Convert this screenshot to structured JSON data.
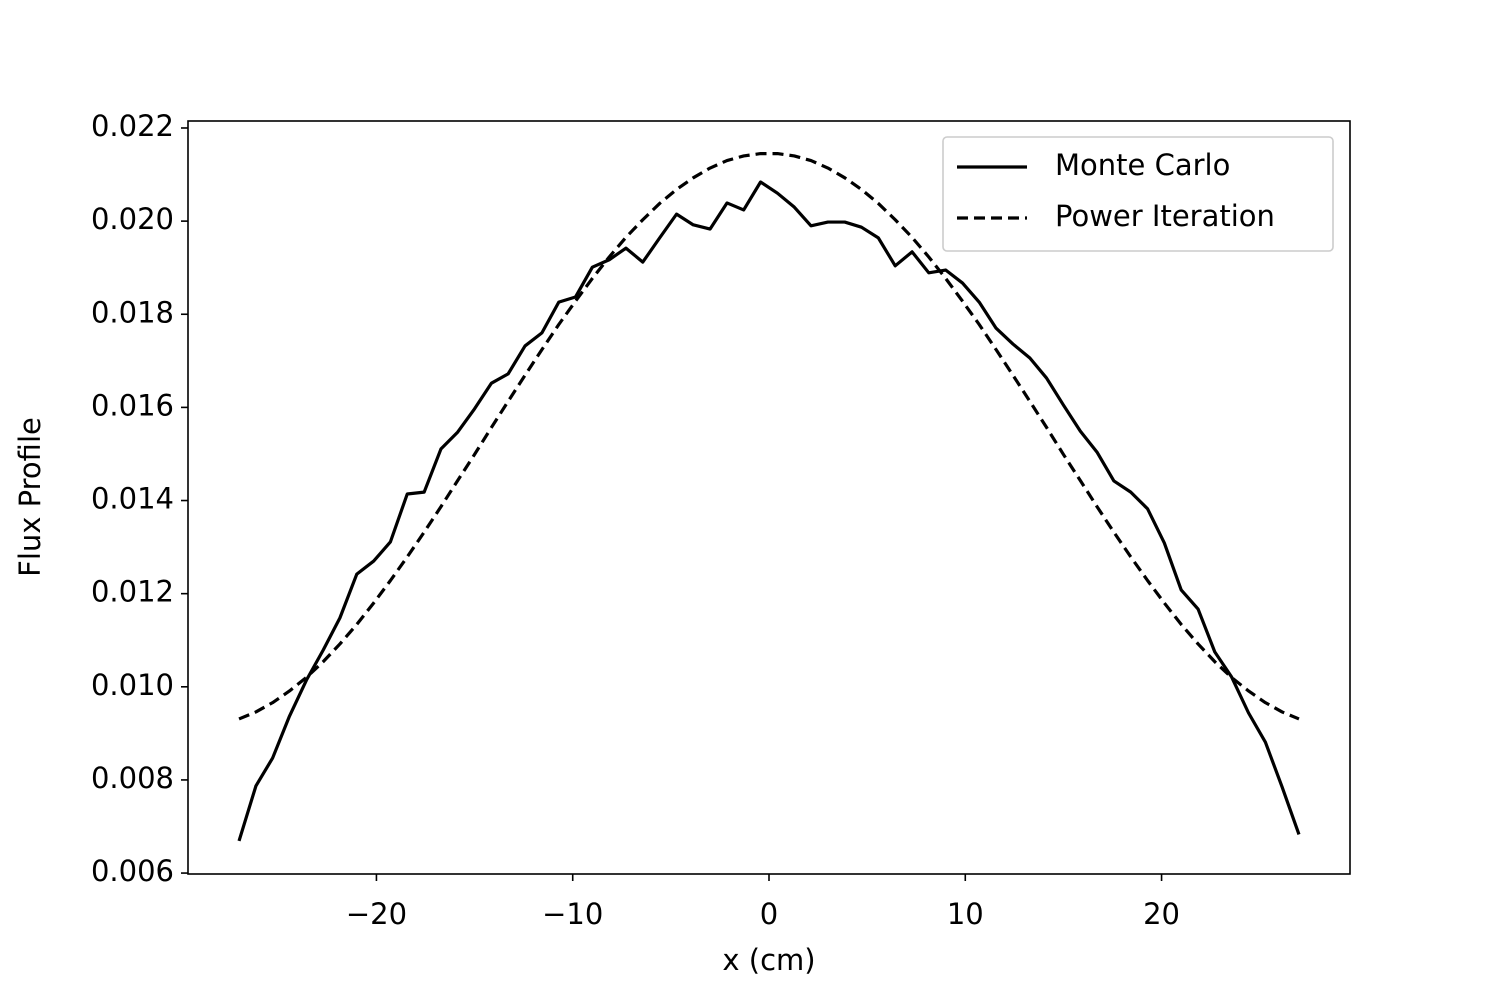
{
  "chart_data": {
    "type": "line",
    "xlabel": "x (cm)",
    "ylabel": "Flux Profile",
    "x": [
      -27,
      -26.14,
      -25.29,
      -24.43,
      -23.57,
      -22.71,
      -21.86,
      -21,
      -20.14,
      -19.29,
      -18.43,
      -17.57,
      -16.71,
      -15.86,
      -15,
      -14.14,
      -13.29,
      -12.43,
      -11.57,
      -10.71,
      -9.86,
      -9,
      -8.14,
      -7.29,
      -6.43,
      -5.57,
      -4.71,
      -3.86,
      -3,
      -2.14,
      -1.29,
      -0.43,
      0.43,
      1.29,
      2.14,
      3,
      3.86,
      4.71,
      5.57,
      6.43,
      7.29,
      8.14,
      9,
      9.86,
      10.71,
      11.57,
      12.43,
      13.29,
      14.14,
      15,
      15.86,
      16.71,
      17.57,
      18.43,
      19.29,
      20.14,
      21,
      21.86,
      22.71,
      23.57,
      24.43,
      25.29,
      26.14,
      27
    ],
    "series": [
      {
        "name": "Monte Carlo",
        "color": "#000000",
        "linestyle": "solid",
        "values": [
          0.00669,
          0.00787,
          0.00847,
          0.00937,
          0.01014,
          0.01079,
          0.01148,
          0.01242,
          0.0127,
          0.01311,
          0.01414,
          0.01418,
          0.01511,
          0.01547,
          0.01597,
          0.01652,
          0.01672,
          0.01732,
          0.0176,
          0.01826,
          0.01837,
          0.01901,
          0.01917,
          0.01942,
          0.01912,
          0.01964,
          0.02015,
          0.01992,
          0.01983,
          0.02039,
          0.02024,
          0.02084,
          0.0206,
          0.0203,
          0.0199,
          0.01998,
          0.01998,
          0.01987,
          0.01964,
          0.01904,
          0.01934,
          0.01889,
          0.01895,
          0.01867,
          0.01826,
          0.0177,
          0.01736,
          0.01706,
          0.01663,
          0.01605,
          0.01549,
          0.01504,
          0.01442,
          0.01418,
          0.01382,
          0.01309,
          0.01208,
          0.01167,
          0.01075,
          0.01021,
          0.00944,
          0.00881,
          0.00785,
          0.00683
        ]
      },
      {
        "name": "Power Iteration",
        "color": "#000000",
        "linestyle": "dashed",
        "values": [
          0.00931,
          0.00946,
          0.00966,
          0.00991,
          0.0102,
          0.01054,
          0.01092,
          0.01134,
          0.0118,
          0.01228,
          0.01279,
          0.01332,
          0.01387,
          0.01443,
          0.01499,
          0.01557,
          0.01613,
          0.01669,
          0.01724,
          0.01778,
          0.01828,
          0.01877,
          0.01923,
          0.01965,
          0.02003,
          0.02038,
          0.02068,
          0.02093,
          0.02114,
          0.0213,
          0.0214,
          0.02145,
          0.02145,
          0.0214,
          0.0213,
          0.02114,
          0.02093,
          0.02068,
          0.02038,
          0.02003,
          0.01965,
          0.01923,
          0.01877,
          0.01828,
          0.01778,
          0.01724,
          0.01669,
          0.01613,
          0.01557,
          0.01499,
          0.01443,
          0.01387,
          0.01332,
          0.01279,
          0.01228,
          0.0118,
          0.01134,
          0.01092,
          0.01054,
          0.0102,
          0.00991,
          0.00966,
          0.00946,
          0.00931
        ]
      }
    ],
    "xlim": [
      -29.6,
      29.6
    ],
    "xticks": [
      {
        "value": -20,
        "label": "−20"
      },
      {
        "value": -10,
        "label": "−10"
      },
      0,
      10,
      20
    ],
    "ylim": [
      0.00598,
      0.02215
    ],
    "yticks": [
      0.006,
      0.008,
      {
        "value": 0.01,
        "label": "0.010"
      },
      0.012,
      0.014,
      0.016,
      0.018,
      {
        "value": 0.02,
        "label": "0.020"
      },
      0.022
    ],
    "grid": false,
    "legend": "upper right"
  }
}
